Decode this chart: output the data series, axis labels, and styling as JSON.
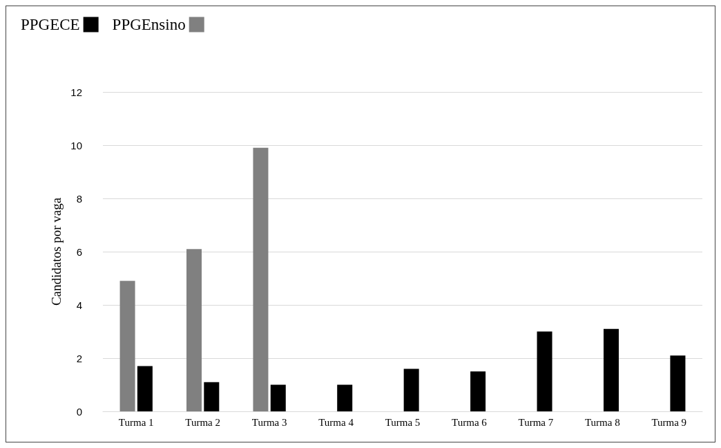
{
  "chart_data": {
    "type": "bar",
    "ylabel": "Candidatos por vaga",
    "categories": [
      "Turma 1",
      "Turma 2",
      "Turma 3",
      "Turma 4",
      "Turma 5",
      "Turma 6",
      "Turma 7",
      "Turma 8",
      "Turma 9"
    ],
    "series": [
      {
        "name": "PPGEnsino",
        "color": "#808080",
        "values": [
          4.9,
          6.1,
          9.9,
          null,
          null,
          null,
          null,
          null,
          null
        ]
      },
      {
        "name": "PPGECE",
        "color": "#000000",
        "values": [
          1.7,
          1.1,
          1.0,
          1.0,
          1.6,
          1.5,
          3.0,
          3.1,
          2.1
        ]
      }
    ],
    "ylim": [
      0,
      12
    ],
    "yticks": [
      0,
      2,
      4,
      6,
      8,
      10,
      12
    ],
    "grid": "y",
    "legend": "top left"
  }
}
